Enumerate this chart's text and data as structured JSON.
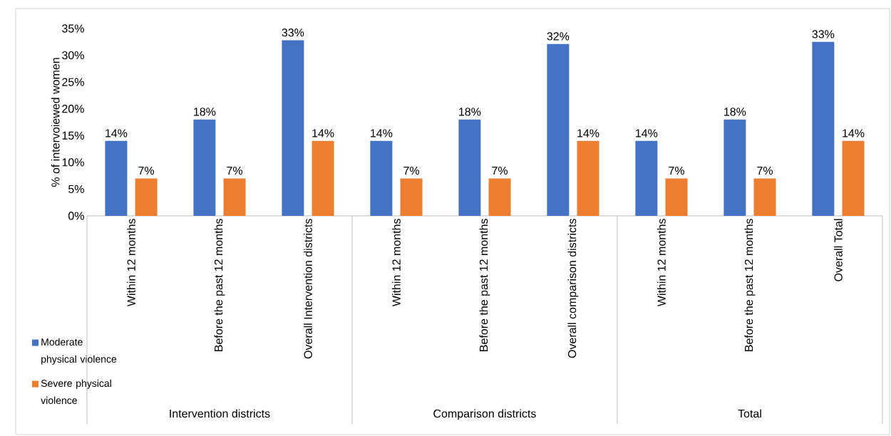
{
  "chart_data": {
    "type": "bar",
    "ylabel": "% of intervoiewed women",
    "categories": [
      "Within 12 months",
      "Before the past 12 months",
      "Overall Intervention districts",
      "Within 12 months",
      "Before the past 12 months",
      "Overall comparison districts",
      "Within 12 months",
      "Before the past 12 months",
      "Overall Total"
    ],
    "series": [
      {
        "name": "Moderate physical violence",
        "color": "#4472c4",
        "values": [
          14,
          18,
          32.8,
          14,
          18,
          32.1,
          14,
          18,
          32.5
        ],
        "value_labels": [
          "14%",
          "18%",
          "33%",
          "14%",
          "18%",
          "32%",
          "14%",
          "18%",
          "33%"
        ]
      },
      {
        "name": "Severe physical violence",
        "color": "#ed7d31",
        "values": [
          7,
          7,
          14,
          7,
          7,
          14,
          7,
          7,
          14
        ],
        "value_labels": [
          "7%",
          "7%",
          "14%",
          "7%",
          "7%",
          "14%",
          "7%",
          "7%",
          "14%"
        ]
      }
    ],
    "ylim": [
      0,
      35
    ],
    "yticks": [
      {
        "value": 0,
        "label": "0%"
      },
      {
        "value": 5,
        "label": "5%"
      },
      {
        "value": 10,
        "label": "10%"
      },
      {
        "value": 15,
        "label": "15%"
      },
      {
        "value": 20,
        "label": "20%"
      },
      {
        "value": 25,
        "label": "25%"
      },
      {
        "value": 30,
        "label": "30%"
      },
      {
        "value": 35,
        "label": "35%"
      }
    ],
    "annotations": [
      "Intervention districts",
      "Comparison districts",
      "Total"
    ],
    "legend": "bottom left",
    "grid": false
  }
}
